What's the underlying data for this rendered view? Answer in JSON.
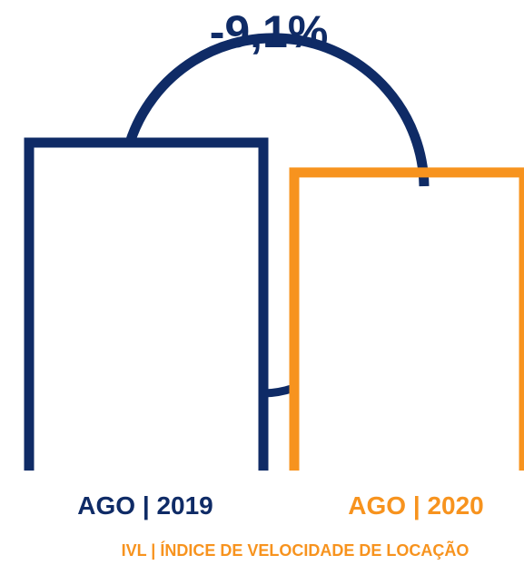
{
  "chart_data": {
    "type": "bar",
    "categories": [
      "AGO | 2019",
      "AGO | 2020"
    ],
    "values": [
      100,
      90.9
    ],
    "change_label": "-9,1%",
    "footer": "IVL | ÍNDICE DE VELOCIDADE DE LOCAÇÃO",
    "colors": {
      "bar_2019": "#0f2b66",
      "bar_2020": "#f7931e",
      "change_label": "#0f2b66"
    },
    "ylim": [
      0,
      100
    ],
    "grid": false,
    "legend": "none"
  }
}
